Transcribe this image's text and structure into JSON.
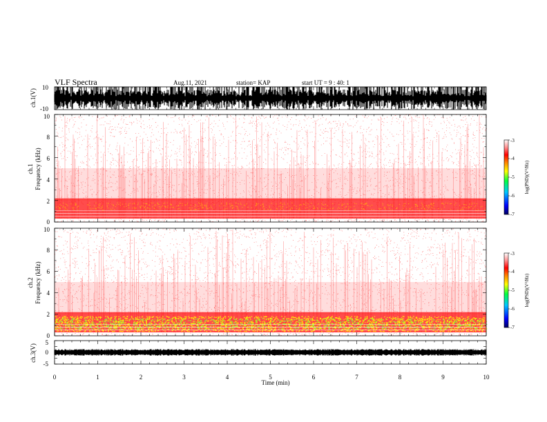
{
  "header": {
    "title": "VLF Spectra",
    "date": "Aug.11, 2021",
    "station": "station= KAP",
    "start": "start  UT =   9 : 40: 1"
  },
  "chart_data": {
    "type": "heatmap",
    "xlabel": "Time  (min)",
    "xlim": [
      0,
      10
    ],
    "xticks": [
      "0",
      "1",
      "2",
      "3",
      "4",
      "5",
      "6",
      "7",
      "8",
      "9",
      "10"
    ],
    "panels": [
      {
        "id": "ch1-waveform",
        "type": "line",
        "ylabel": "ch.1(V)",
        "ylim": [
          -10,
          10
        ],
        "yticks": [
          "10",
          "-10"
        ]
      },
      {
        "id": "ch1-spectrogram",
        "type": "heatmap",
        "ylabel_top": "ch.1",
        "ylabel": "Frequency  (kHz)",
        "ylim": [
          0,
          10
        ],
        "yticks": [
          "0",
          "2",
          "4",
          "6",
          "8",
          "10"
        ]
      },
      {
        "id": "ch2-spectrogram",
        "type": "heatmap",
        "ylabel_top": "ch.2",
        "ylabel": "Frequency  (kHz)",
        "ylim": [
          0,
          10
        ],
        "yticks": [
          "0",
          "2",
          "4",
          "6",
          "8",
          "10"
        ]
      },
      {
        "id": "ch3-waveform",
        "type": "line",
        "ylabel": "ch.3(V)",
        "ylim": [
          -5,
          5
        ],
        "yticks": [
          "5",
          "0",
          "-5"
        ]
      }
    ],
    "colorbar": {
      "label": "log(PSD)(V²/Hz)",
      "range": [
        -7,
        -3
      ],
      "ticks": [
        "-3",
        "-4",
        "-5",
        "-6",
        "-7"
      ],
      "colors": [
        "#000080",
        "#0000ff",
        "#00c8ff",
        "#00ff40",
        "#c8ff00",
        "#ffff00",
        "#ffa000",
        "#ff0000",
        "#ffffff"
      ]
    }
  }
}
